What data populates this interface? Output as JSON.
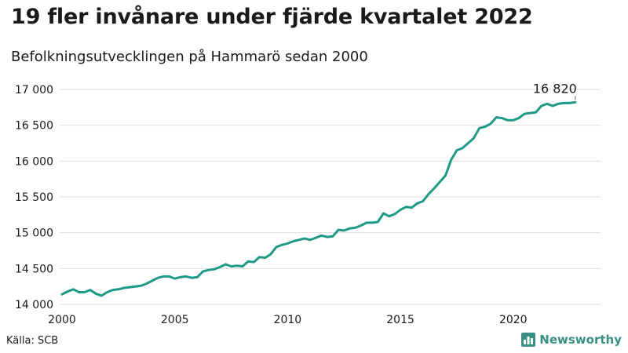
{
  "header": {
    "title": "19 fler invånare under fjärde kvartalet 2022",
    "subtitle": "Befolkningsutvecklingen på Hammarö sedan 2000"
  },
  "footer": {
    "source": "Källa: SCB",
    "brand": "Newsworthy",
    "brand_icon": "bar-chart-icon",
    "brand_color": "#3a8f83"
  },
  "chart_data": {
    "type": "line",
    "line_color": "#1f9a86",
    "grid": true,
    "xlim": [
      2000,
      2023
    ],
    "ylim": [
      14000,
      17000
    ],
    "xticks": [
      2000,
      2005,
      2010,
      2015,
      2020
    ],
    "xtick_labels": [
      "2000",
      "2005",
      "2010",
      "2015",
      "2020"
    ],
    "yticks": [
      14000,
      14500,
      15000,
      15500,
      16000,
      16500,
      17000
    ],
    "ytick_labels": [
      "14 000",
      "14 500",
      "15 000",
      "15 500",
      "16 000",
      "16 500",
      "17 000"
    ],
    "end_label": "16 820",
    "series": [
      {
        "x": [
          2000.0,
          2000.25,
          2000.5,
          2000.75,
          2001.0,
          2001.25,
          2001.5,
          2001.75,
          2002.0,
          2002.25,
          2002.5,
          2002.75,
          2003.0,
          2003.25,
          2003.5,
          2003.75,
          2004.0,
          2004.25,
          2004.5,
          2004.75,
          2005.0,
          2005.25,
          2005.5,
          2005.75,
          2006.0,
          2006.25,
          2006.5,
          2006.75,
          2007.0,
          2007.25,
          2007.5,
          2007.75,
          2008.0,
          2008.25,
          2008.5,
          2008.75,
          2009.0,
          2009.25,
          2009.5,
          2009.75,
          2010.0,
          2010.25,
          2010.5,
          2010.75,
          2011.0,
          2011.25,
          2011.5,
          2011.75,
          2012.0,
          2012.25,
          2012.5,
          2012.75,
          2013.0,
          2013.25,
          2013.5,
          2013.75,
          2014.0,
          2014.25,
          2014.5,
          2014.75,
          2015.0,
          2015.25,
          2015.5,
          2015.75,
          2016.0,
          2016.25,
          2016.5,
          2016.75,
          2017.0,
          2017.25,
          2017.5,
          2017.75,
          2018.0,
          2018.25,
          2018.5,
          2018.75,
          2019.0,
          2019.25,
          2019.5,
          2019.75,
          2020.0,
          2020.25,
          2020.5,
          2020.75,
          2021.0,
          2021.25,
          2021.5,
          2021.75,
          2022.0,
          2022.25,
          2022.5,
          2022.75
        ],
        "y": [
          14140,
          14180,
          14210,
          14170,
          14170,
          14200,
          14150,
          14120,
          14170,
          14200,
          14210,
          14230,
          14240,
          14250,
          14260,
          14290,
          14330,
          14370,
          14390,
          14390,
          14360,
          14380,
          14390,
          14370,
          14380,
          14460,
          14480,
          14490,
          14520,
          14560,
          14530,
          14540,
          14530,
          14600,
          14590,
          14660,
          14650,
          14700,
          14800,
          14830,
          14850,
          14880,
          14900,
          14920,
          14900,
          14930,
          14960,
          14940,
          14950,
          15040,
          15030,
          15060,
          15070,
          15100,
          15140,
          15140,
          15150,
          15270,
          15230,
          15260,
          15320,
          15360,
          15350,
          15410,
          15440,
          15540,
          15620,
          15710,
          15800,
          16020,
          16150,
          16180,
          16250,
          16320,
          16460,
          16480,
          16520,
          16610,
          16600,
          16570,
          16570,
          16600,
          16660,
          16670,
          16680,
          16770,
          16800,
          16770,
          16800,
          16810,
          16810,
          16820
        ]
      }
    ]
  }
}
